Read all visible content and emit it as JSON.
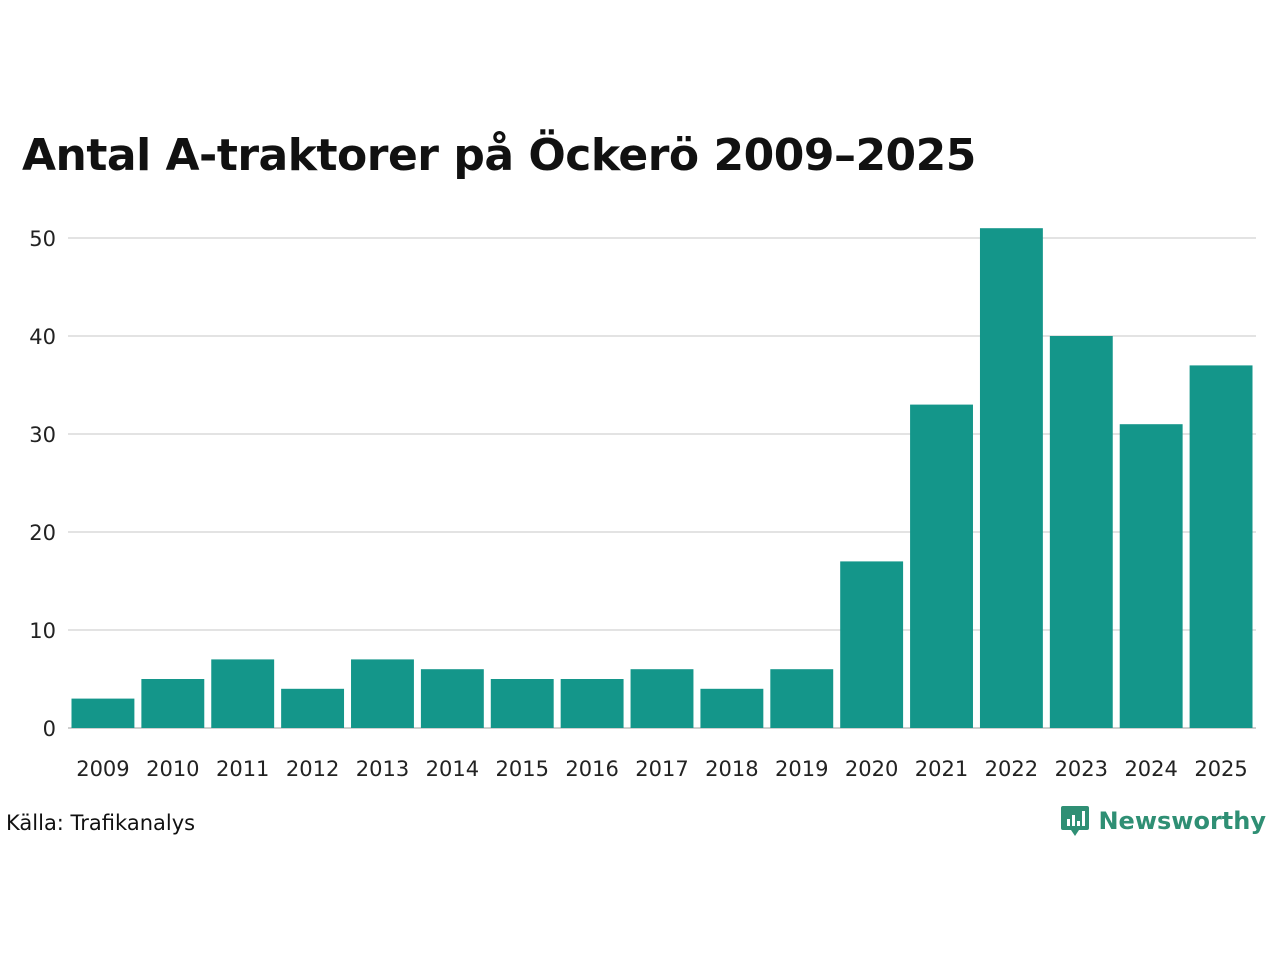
{
  "chart_data": {
    "type": "bar",
    "title": "Antal A-traktorer på Öckerö 2009–2025",
    "categories": [
      "2009",
      "2010",
      "2011",
      "2012",
      "2013",
      "2014",
      "2015",
      "2016",
      "2017",
      "2018",
      "2019",
      "2020",
      "2021",
      "2022",
      "2023",
      "2024",
      "2025"
    ],
    "values": [
      3,
      5,
      7,
      4,
      7,
      6,
      5,
      5,
      6,
      4,
      6,
      17,
      33,
      51,
      40,
      31,
      37
    ],
    "ylim": [
      0,
      50
    ],
    "yticks": [
      0,
      10,
      20,
      30,
      40,
      50
    ],
    "xlabel": "",
    "ylabel": "",
    "grid": true,
    "bar_color": "#14968a"
  },
  "source": "Källa: Trafikanalys",
  "brand": {
    "name": "Newsworthy",
    "icon": "newsworthy-logo-icon",
    "color": "#2f8f74"
  }
}
